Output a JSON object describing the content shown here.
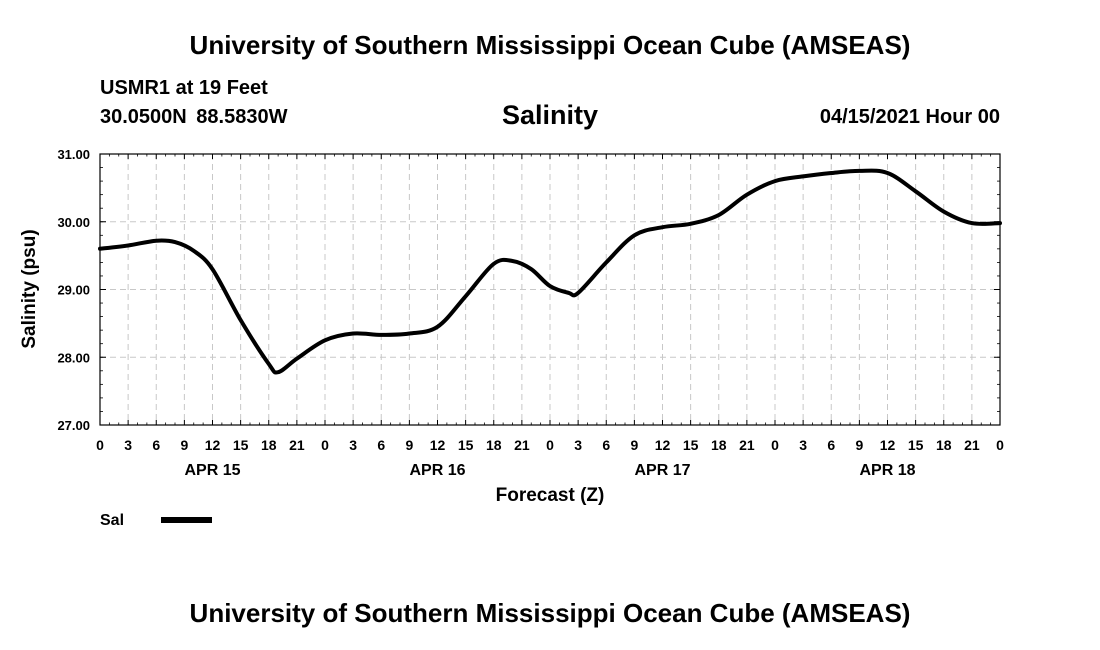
{
  "header": {
    "title": "University of Southern Mississippi Ocean Cube (AMSEAS)",
    "station": "USMR1 at 19 Feet",
    "coords": "30.0500N  88.5830W",
    "run_time": "04/15/2021 Hour 00"
  },
  "footer": {
    "title": "University of Southern Mississippi Ocean Cube (AMSEAS)"
  },
  "chart_data": {
    "type": "line",
    "title": "Salinity",
    "xlabel": "Forecast (Z)",
    "ylabel": "Salinity (psu)",
    "ylim": [
      27.0,
      31.0
    ],
    "y_ticks": [
      "27.00",
      "28.00",
      "29.00",
      "30.00",
      "31.00"
    ],
    "xlim_hours": [
      0,
      96
    ],
    "x_tick_labels": [
      "0",
      "3",
      "6",
      "9",
      "12",
      "15",
      "18",
      "21",
      "0",
      "3",
      "6",
      "9",
      "12",
      "15",
      "18",
      "21",
      "0",
      "3",
      "6",
      "9",
      "12",
      "15",
      "18",
      "21",
      "0",
      "3",
      "6",
      "9",
      "12",
      "15",
      "18",
      "21",
      "0"
    ],
    "date_labels": [
      {
        "label": "APR 15",
        "hour": 12
      },
      {
        "label": "APR 16",
        "hour": 36
      },
      {
        "label": "APR 17",
        "hour": 60
      },
      {
        "label": "APR 18",
        "hour": 84
      }
    ],
    "grid": true,
    "legend_position": "bottom-left",
    "series": [
      {
        "name": "Sal",
        "color": "#000000",
        "x": [
          0,
          3,
          6,
          8,
          10,
          12,
          15,
          18,
          19,
          21,
          24,
          27,
          30,
          33,
          36,
          39,
          42,
          44,
          46,
          48,
          50,
          51,
          54,
          57,
          60,
          63,
          66,
          69,
          72,
          75,
          78,
          81,
          84,
          87,
          90,
          93,
          96
        ],
        "values": [
          29.6,
          29.65,
          29.72,
          29.7,
          29.57,
          29.3,
          28.55,
          27.9,
          27.78,
          27.98,
          28.25,
          28.35,
          28.33,
          28.35,
          28.45,
          28.9,
          29.38,
          29.42,
          29.3,
          29.05,
          28.95,
          28.95,
          29.4,
          29.8,
          29.92,
          29.97,
          30.1,
          30.4,
          30.6,
          30.67,
          30.72,
          30.75,
          30.72,
          30.45,
          30.15,
          29.98,
          29.98
        ]
      }
    ]
  }
}
